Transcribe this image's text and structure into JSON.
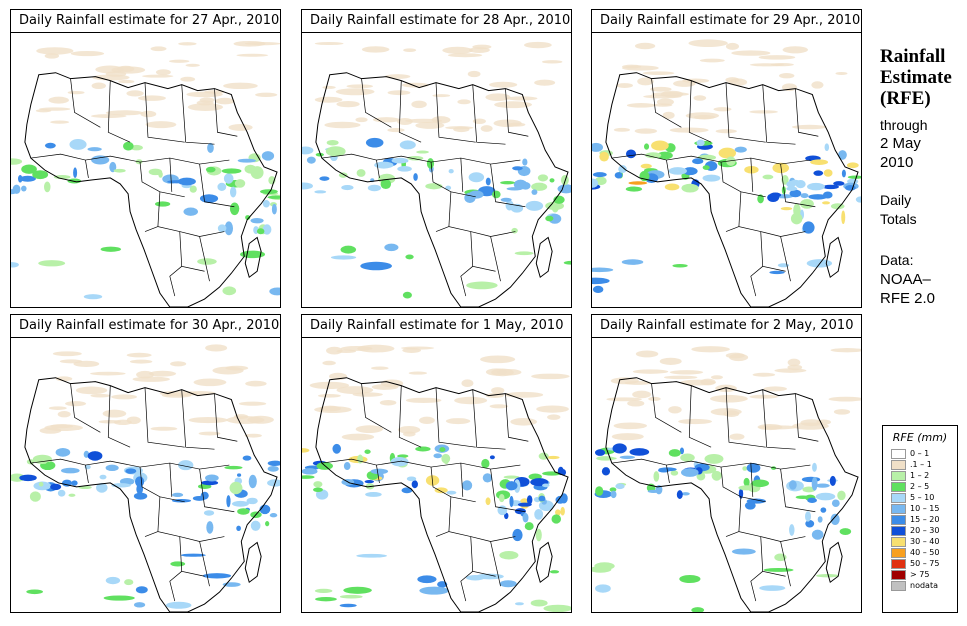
{
  "panels": [
    {
      "title": "Daily Rainfall estimate for  27 Apr., 2010",
      "date": "27 Apr., 2010"
    },
    {
      "title": "Daily Rainfall estimate for  28 Apr., 2010",
      "date": "28 Apr., 2010"
    },
    {
      "title": "Daily Rainfall estimate for  29 Apr., 2010",
      "date": "29 Apr., 2010"
    },
    {
      "title": "Daily Rainfall estimate for  30 Apr., 2010",
      "date": "30 Apr., 2010"
    },
    {
      "title": "Daily Rainfall estimate for  1 May, 2010",
      "date": "1 May, 2010"
    },
    {
      "title": "Daily Rainfall estimate for  2 May, 2010",
      "date": "2 May, 2010"
    }
  ],
  "sidebar": {
    "title_line1": "Rainfall",
    "title_line2": "Estimate",
    "title_line3": "(RFE)",
    "through": "through",
    "end_date_line1": "2 May",
    "end_date_line2": "2010",
    "daily": "Daily",
    "totals": "Totals",
    "data_label": "Data:",
    "source_line1": "NOAA–",
    "source_line2": "RFE 2.0"
  },
  "legend": {
    "title": "RFE (mm)",
    "items": [
      {
        "label": "0 – 1",
        "color": "#ffffff"
      },
      {
        "label": ".1 – 1",
        "color": "#f0e0c8"
      },
      {
        "label": "1 – 2",
        "color": "#b8f0a8"
      },
      {
        "label": "2 – 5",
        "color": "#60e060"
      },
      {
        "label": "5 – 10",
        "color": "#a8d8f8"
      },
      {
        "label": "10 – 15",
        "color": "#78b8f0"
      },
      {
        "label": "15 – 20",
        "color": "#3c8ce8"
      },
      {
        "label": "20 – 30",
        "color": "#1050d8"
      },
      {
        "label": "30 – 40",
        "color": "#f8e070"
      },
      {
        "label": "40 – 50",
        "color": "#f8a020"
      },
      {
        "label": "50 – 75",
        "color": "#e03010"
      },
      {
        "label": "> 75",
        "color": "#a00000"
      },
      {
        "label": "nodata",
        "color": "#c0c0c0"
      }
    ]
  },
  "rain_patterns": [
    {
      "band": 0.55,
      "heavy": 0.35,
      "east": 0.6,
      "south": 0.3
    },
    {
      "band": 0.6,
      "heavy": 0.25,
      "east": 0.5,
      "south": 0.35
    },
    {
      "band": 0.8,
      "heavy": 0.7,
      "east": 0.8,
      "south": 0.3
    },
    {
      "band": 0.6,
      "heavy": 0.4,
      "east": 0.5,
      "south": 0.45
    },
    {
      "band": 0.85,
      "heavy": 0.65,
      "east": 0.6,
      "south": 0.7
    },
    {
      "band": 0.65,
      "heavy": 0.5,
      "east": 0.6,
      "south": 0.4
    }
  ]
}
